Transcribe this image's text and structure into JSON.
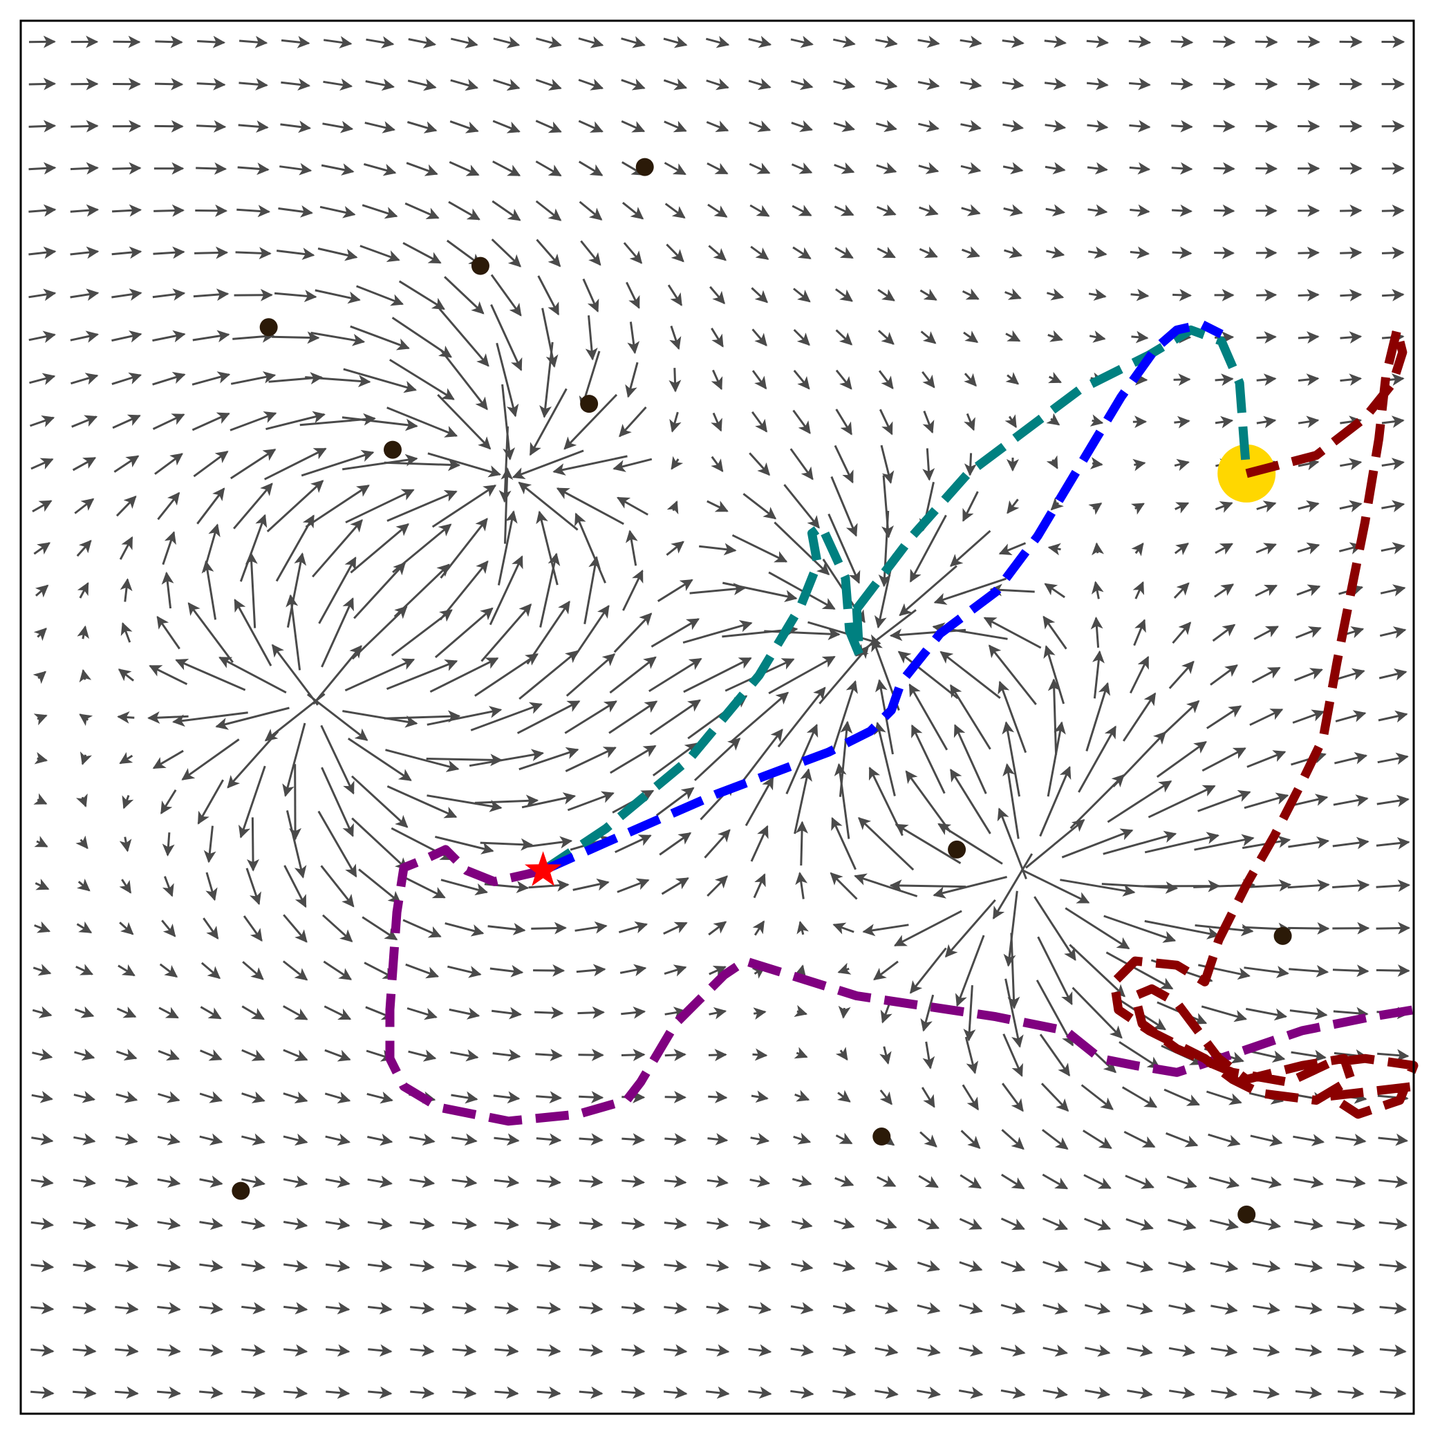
{
  "figure": {
    "description_type": "vector-field-with-trajectories",
    "colors": {
      "arrows": "#4a4a4a",
      "obstacles": "#2b1a08",
      "goal": "#ffd700",
      "start": "#ff0000",
      "frame": "#000000"
    }
  },
  "chart_data": {
    "type": "quiver",
    "x_range": [
      0,
      1
    ],
    "y_range": [
      0,
      1
    ],
    "grid_rows": 33,
    "grid_cols": 33,
    "base_flow": [
      1,
      0
    ],
    "field_features": [
      {
        "kind": "source",
        "center": [
          0.215,
          0.513
        ],
        "strength": 1.0
      },
      {
        "kind": "sink",
        "center": [
          0.345,
          0.67
        ],
        "strength": 0.9
      },
      {
        "kind": "sink",
        "center": [
          0.612,
          0.552
        ],
        "strength": 0.9
      },
      {
        "kind": "source",
        "center": [
          0.72,
          0.392
        ],
        "strength": 1.0
      }
    ],
    "obstacles": [
      [
        0.448,
        0.895
      ],
      [
        0.33,
        0.824
      ],
      [
        0.178,
        0.78
      ],
      [
        0.408,
        0.725
      ],
      [
        0.267,
        0.692
      ],
      [
        0.672,
        0.405
      ],
      [
        0.906,
        0.343
      ],
      [
        0.618,
        0.199
      ],
      [
        0.158,
        0.16
      ],
      [
        0.88,
        0.143
      ]
    ],
    "goal": [
      0.88,
      0.675
    ],
    "start": [
      0.375,
      0.39
    ],
    "trajectories": [
      {
        "color": "#008080",
        "points": [
          [
            0.375,
            0.39
          ],
          [
            0.42,
            0.42
          ],
          [
            0.48,
            0.47
          ],
          [
            0.53,
            0.53
          ],
          [
            0.56,
            0.58
          ],
          [
            0.572,
            0.61
          ],
          [
            0.568,
            0.632
          ],
          [
            0.575,
            0.637
          ],
          [
            0.592,
            0.6
          ],
          [
            0.595,
            0.562
          ],
          [
            0.602,
            0.545
          ],
          [
            0.6,
            0.58
          ],
          [
            0.598,
            0.575
          ],
          [
            0.64,
            0.63
          ],
          [
            0.68,
            0.675
          ],
          [
            0.76,
            0.735
          ],
          [
            0.81,
            0.76
          ],
          [
            0.84,
            0.778
          ],
          [
            0.862,
            0.77
          ],
          [
            0.875,
            0.74
          ],
          [
            0.878,
            0.7
          ],
          [
            0.88,
            0.675
          ]
        ]
      },
      {
        "color": "#0000ff",
        "points": [
          [
            0.375,
            0.39
          ],
          [
            0.42,
            0.41
          ],
          [
            0.5,
            0.445
          ],
          [
            0.58,
            0.475
          ],
          [
            0.61,
            0.49
          ],
          [
            0.625,
            0.505
          ],
          [
            0.632,
            0.525
          ],
          [
            0.66,
            0.56
          ],
          [
            0.7,
            0.59
          ],
          [
            0.73,
            0.63
          ],
          [
            0.76,
            0.68
          ],
          [
            0.79,
            0.73
          ],
          [
            0.815,
            0.765
          ],
          [
            0.83,
            0.778
          ],
          [
            0.848,
            0.782
          ],
          [
            0.862,
            0.775
          ]
        ]
      },
      {
        "color": "#800080",
        "points": [
          [
            0.375,
            0.39
          ],
          [
            0.34,
            0.382
          ],
          [
            0.32,
            0.39
          ],
          [
            0.305,
            0.405
          ],
          [
            0.29,
            0.398
          ],
          [
            0.275,
            0.392
          ],
          [
            0.27,
            0.36
          ],
          [
            0.265,
            0.29
          ],
          [
            0.265,
            0.255
          ],
          [
            0.275,
            0.235
          ],
          [
            0.3,
            0.22
          ],
          [
            0.35,
            0.21
          ],
          [
            0.4,
            0.215
          ],
          [
            0.435,
            0.225
          ],
          [
            0.445,
            0.238
          ],
          [
            0.47,
            0.28
          ],
          [
            0.505,
            0.315
          ],
          [
            0.52,
            0.325
          ],
          [
            0.6,
            0.3
          ],
          [
            0.7,
            0.285
          ],
          [
            0.75,
            0.275
          ],
          [
            0.775,
            0.255
          ],
          [
            0.8,
            0.25
          ],
          [
            0.83,
            0.245
          ],
          [
            0.87,
            0.258
          ],
          [
            0.92,
            0.275
          ],
          [
            0.97,
            0.285
          ],
          [
            1.0,
            0.29
          ]
        ]
      },
      {
        "color": "#8b0000",
        "points": [
          [
            0.88,
            0.675
          ],
          [
            0.93,
            0.688
          ],
          [
            0.965,
            0.715
          ],
          [
            0.985,
            0.74
          ],
          [
            0.992,
            0.762
          ],
          [
            0.988,
            0.778
          ],
          [
            0.98,
            0.745
          ],
          [
            0.975,
            0.7
          ],
          [
            0.965,
            0.64
          ],
          [
            0.955,
            0.59
          ],
          [
            0.945,
            0.54
          ],
          [
            0.935,
            0.485
          ],
          [
            0.918,
            0.45
          ],
          [
            0.9,
            0.415
          ],
          [
            0.88,
            0.38
          ],
          [
            0.86,
            0.34
          ],
          [
            0.85,
            0.31
          ],
          [
            0.83,
            0.322
          ],
          [
            0.8,
            0.325
          ],
          [
            0.785,
            0.31
          ],
          [
            0.788,
            0.29
          ],
          [
            0.81,
            0.275
          ],
          [
            0.85,
            0.255
          ],
          [
            0.87,
            0.24
          ],
          [
            0.89,
            0.23
          ],
          [
            0.93,
            0.225
          ],
          [
            0.955,
            0.24
          ],
          [
            0.95,
            0.255
          ],
          [
            0.92,
            0.25
          ],
          [
            0.88,
            0.24
          ],
          [
            0.86,
            0.255
          ],
          [
            0.845,
            0.275
          ],
          [
            0.83,
            0.295
          ],
          [
            0.812,
            0.305
          ],
          [
            0.8,
            0.3
          ],
          [
            0.805,
            0.28
          ],
          [
            0.83,
            0.262
          ],
          [
            0.87,
            0.245
          ],
          [
            0.91,
            0.238
          ],
          [
            0.94,
            0.252
          ],
          [
            0.965,
            0.255
          ],
          [
            1.0,
            0.25
          ],
          [
            0.99,
            0.225
          ],
          [
            0.96,
            0.215
          ],
          [
            0.94,
            0.228
          ],
          [
            1.0,
            0.235
          ]
        ]
      }
    ]
  }
}
